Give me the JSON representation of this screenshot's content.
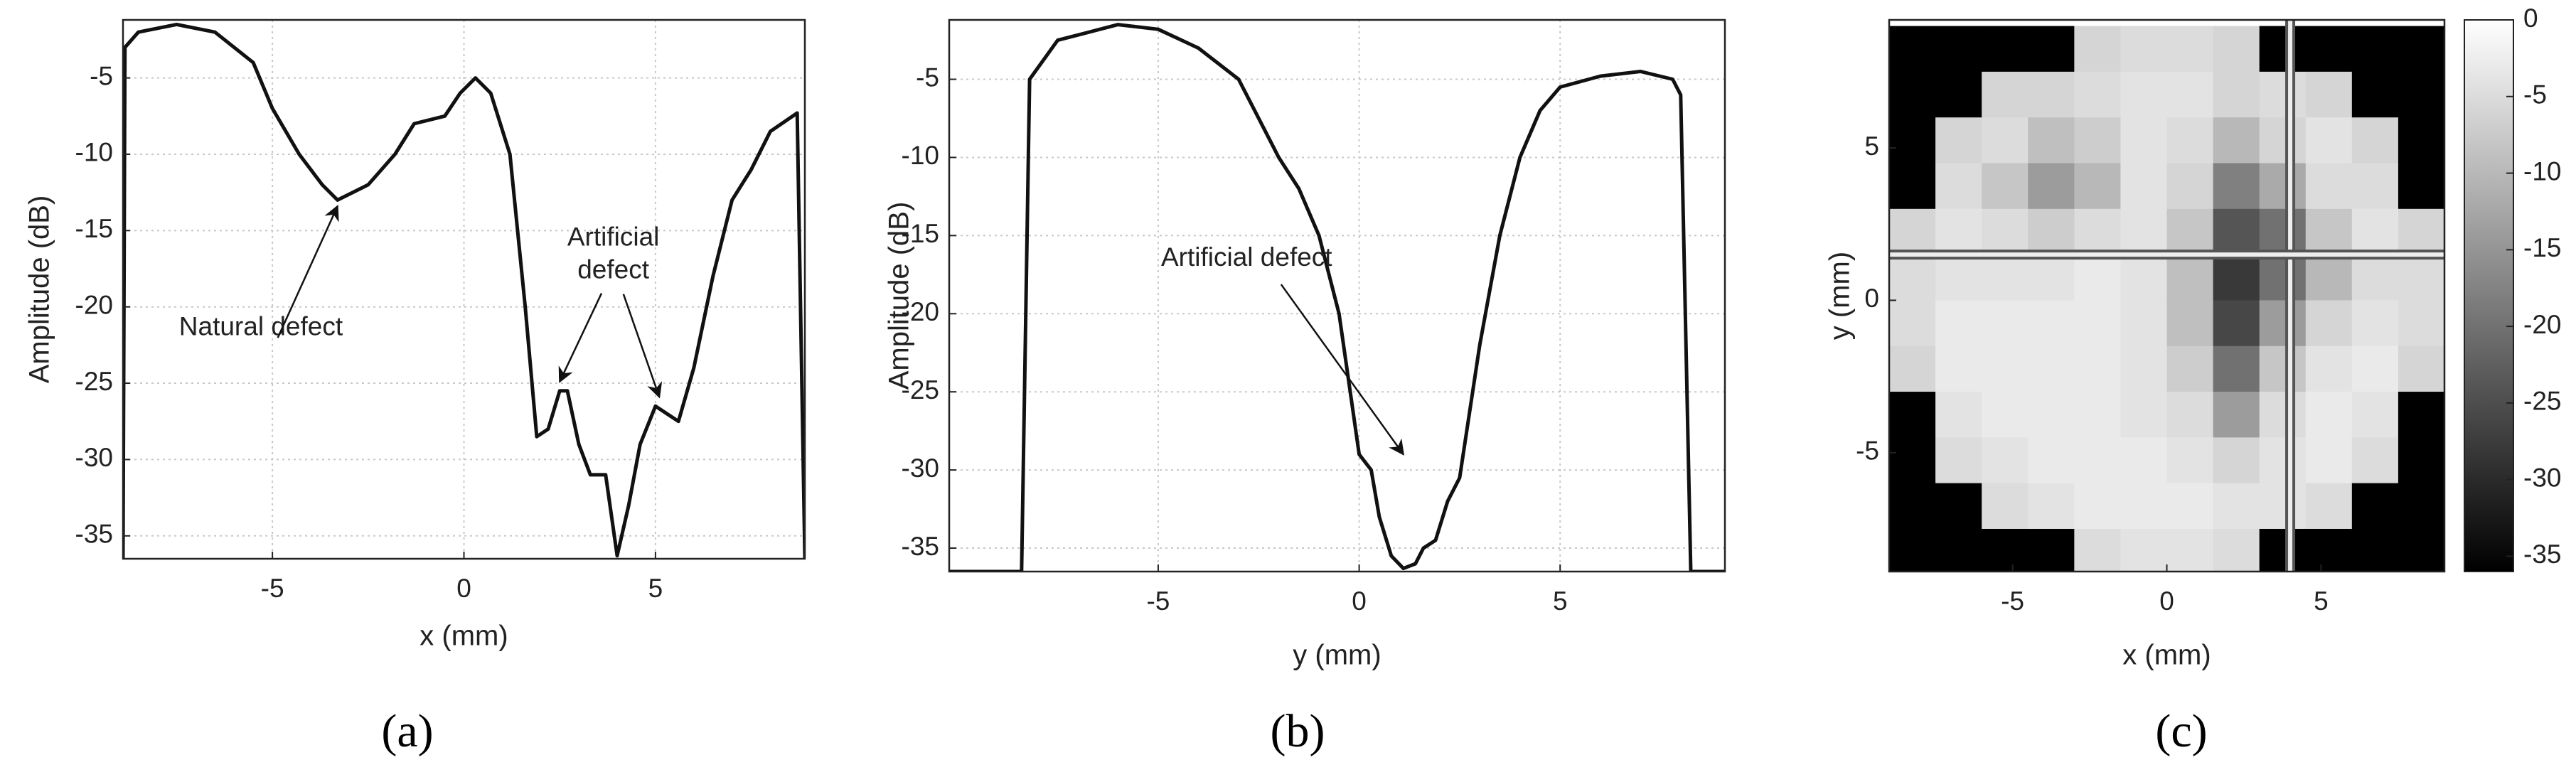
{
  "chart_data": [
    {
      "type": "line",
      "xlabel": "x (mm)",
      "ylabel": "Amplitude (dB)",
      "caption": "(a)",
      "xlim": [
        -8.9,
        8.9
      ],
      "ylim": [
        -36.5,
        -1.2
      ],
      "xticks": [
        -5,
        0,
        5
      ],
      "yticks": [
        -35,
        -30,
        -25,
        -20,
        -15,
        -10,
        -5
      ],
      "grid": true,
      "x": [
        -8.9,
        -8.85,
        -8.5,
        -7.5,
        -6.5,
        -5.5,
        -5.0,
        -4.3,
        -3.7,
        -3.3,
        -2.5,
        -1.8,
        -1.3,
        -0.5,
        -0.1,
        0.3,
        0.7,
        1.2,
        1.6,
        1.9,
        2.2,
        2.5,
        2.7,
        3.0,
        3.3,
        3.7,
        4.0,
        4.3,
        4.6,
        5.0,
        5.3,
        5.6,
        6.0,
        6.5,
        7.0,
        7.5,
        8.0,
        8.7,
        8.9
      ],
      "series": [
        {
          "color": "#111111",
          "values": [
            -36.5,
            -3.0,
            -2.0,
            -1.5,
            -2.0,
            -4.0,
            -7.0,
            -10.0,
            -12.0,
            -13.0,
            -12.0,
            -10.0,
            -8.0,
            -7.5,
            -6.0,
            -5.0,
            -6.0,
            -10.0,
            -20.0,
            -28.5,
            -28.0,
            -25.5,
            -25.5,
            -29.0,
            -31.0,
            -31.0,
            -36.3,
            -33.0,
            -29.0,
            -26.5,
            -27.0,
            -27.5,
            -24.0,
            -18.0,
            -13.0,
            -11.0,
            -8.5,
            -7.3,
            -36.5
          ]
        }
      ],
      "annotations": [
        {
          "text": [
            "Natural defect"
          ],
          "xytext": [
            -5.3,
            -21.4
          ],
          "arrows": [
            [
              -3.3,
              -13.4
            ]
          ]
        },
        {
          "text": [
            "Artificial",
            "defect"
          ],
          "xytext": [
            3.9,
            -16.6
          ],
          "arrows": [
            [
              2.5,
              -24.9
            ],
            [
              5.1,
              -25.9
            ]
          ]
        }
      ]
    },
    {
      "type": "line",
      "xlabel": "y (mm)",
      "ylabel": "Amplitude (dB)",
      "caption": "(b)",
      "xlim": [
        -10.2,
        9.1
      ],
      "ylim": [
        -36.5,
        -1.2
      ],
      "xticks": [
        -5,
        0,
        5
      ],
      "yticks": [
        -35,
        -30,
        -25,
        -20,
        -15,
        -10,
        -5
      ],
      "grid": true,
      "x": [
        -10.2,
        -8.4,
        -8.2,
        -7.5,
        -6.0,
        -5.0,
        -4.0,
        -3.0,
        -2.5,
        -2.0,
        -1.5,
        -1.0,
        -0.5,
        0.0,
        0.3,
        0.5,
        0.8,
        1.1,
        1.4,
        1.6,
        1.9,
        2.2,
        2.5,
        3.0,
        3.5,
        4.0,
        4.5,
        5.0,
        6.0,
        7.0,
        7.8,
        8.0,
        8.25,
        9.1
      ],
      "series": [
        {
          "color": "#111111",
          "values": [
            -36.5,
            -36.5,
            -5.0,
            -2.5,
            -1.5,
            -1.8,
            -3.0,
            -5.0,
            -7.5,
            -10.0,
            -12.0,
            -15.0,
            -20.0,
            -29.0,
            -30.0,
            -33.0,
            -35.5,
            -36.3,
            -36.0,
            -35.0,
            -34.5,
            -32.0,
            -30.5,
            -22.0,
            -15.0,
            -10.0,
            -7.0,
            -5.5,
            -4.8,
            -4.5,
            -5.0,
            -6.0,
            -36.5,
            -36.5
          ]
        }
      ],
      "annotations": [
        {
          "text": [
            "Artificial defect"
          ],
          "xytext": [
            -2.8,
            -16.5
          ],
          "arrows": [
            [
              1.1,
              -29.0
            ]
          ]
        }
      ]
    },
    {
      "type": "heatmap",
      "xlabel": "x (mm)",
      "ylabel": "y (mm)",
      "caption": "(c)",
      "xlim": [
        -9,
        9
      ],
      "ylim": [
        -8.9,
        9.2
      ],
      "xticks": [
        -5,
        0,
        5
      ],
      "yticks": [
        -5,
        0,
        5
      ],
      "clim": [
        -36,
        0
      ],
      "cticks": [
        -35,
        -30,
        -25,
        -20,
        -15,
        -10,
        -5,
        0
      ],
      "cursor": {
        "x": 4,
        "y": 1.5
      },
      "x": [
        -8.25,
        -6.75,
        -5.25,
        -3.75,
        -2.25,
        -0.75,
        0.75,
        2.25,
        3.75,
        5.25,
        6.75,
        8.25
      ],
      "y": [
        8.25,
        6.75,
        5.25,
        3.75,
        2.25,
        0.75,
        -0.75,
        -2.25,
        -3.75,
        -5.25,
        -6.75,
        -8.25
      ],
      "z": [
        [
          -36,
          -36,
          -36,
          -36,
          -6,
          -5,
          -5,
          -6,
          -36,
          -36,
          -36,
          -36
        ],
        [
          -36,
          -36,
          -6,
          -6,
          -5,
          -4,
          -4,
          -6,
          -5,
          -6,
          -36,
          -36
        ],
        [
          -36,
          -6,
          -5,
          -9,
          -7,
          -4,
          -5,
          -10,
          -6,
          -4,
          -6,
          -36
        ],
        [
          -36,
          -5,
          -8,
          -14,
          -10,
          -4,
          -6,
          -18,
          -12,
          -5,
          -5,
          -36
        ],
        [
          -6,
          -4,
          -5,
          -7,
          -5,
          -4,
          -8,
          -24,
          -20,
          -8,
          -4,
          -6
        ],
        [
          -5,
          -4,
          -4,
          -4,
          -3,
          -4,
          -9,
          -28,
          -20,
          -10,
          -5,
          -5
        ],
        [
          -5,
          -3,
          -3,
          -3,
          -3,
          -4,
          -9,
          -26,
          -14,
          -6,
          -4,
          -5
        ],
        [
          -6,
          -3,
          -3,
          -3,
          -3,
          -4,
          -7,
          -20,
          -8,
          -4,
          -3,
          -6
        ],
        [
          -36,
          -4,
          -3,
          -3,
          -3,
          -4,
          -5,
          -14,
          -5,
          -3,
          -4,
          -36
        ],
        [
          -36,
          -5,
          -4,
          -3,
          -3,
          -3,
          -4,
          -6,
          -4,
          -3,
          -5,
          -36
        ],
        [
          -36,
          -36,
          -5,
          -4,
          -3,
          -3,
          -3,
          -4,
          -4,
          -5,
          -36,
          -36
        ],
        [
          -36,
          -36,
          -36,
          -36,
          -5,
          -4,
          -4,
          -5,
          -36,
          -36,
          -36,
          -36
        ]
      ]
    }
  ]
}
